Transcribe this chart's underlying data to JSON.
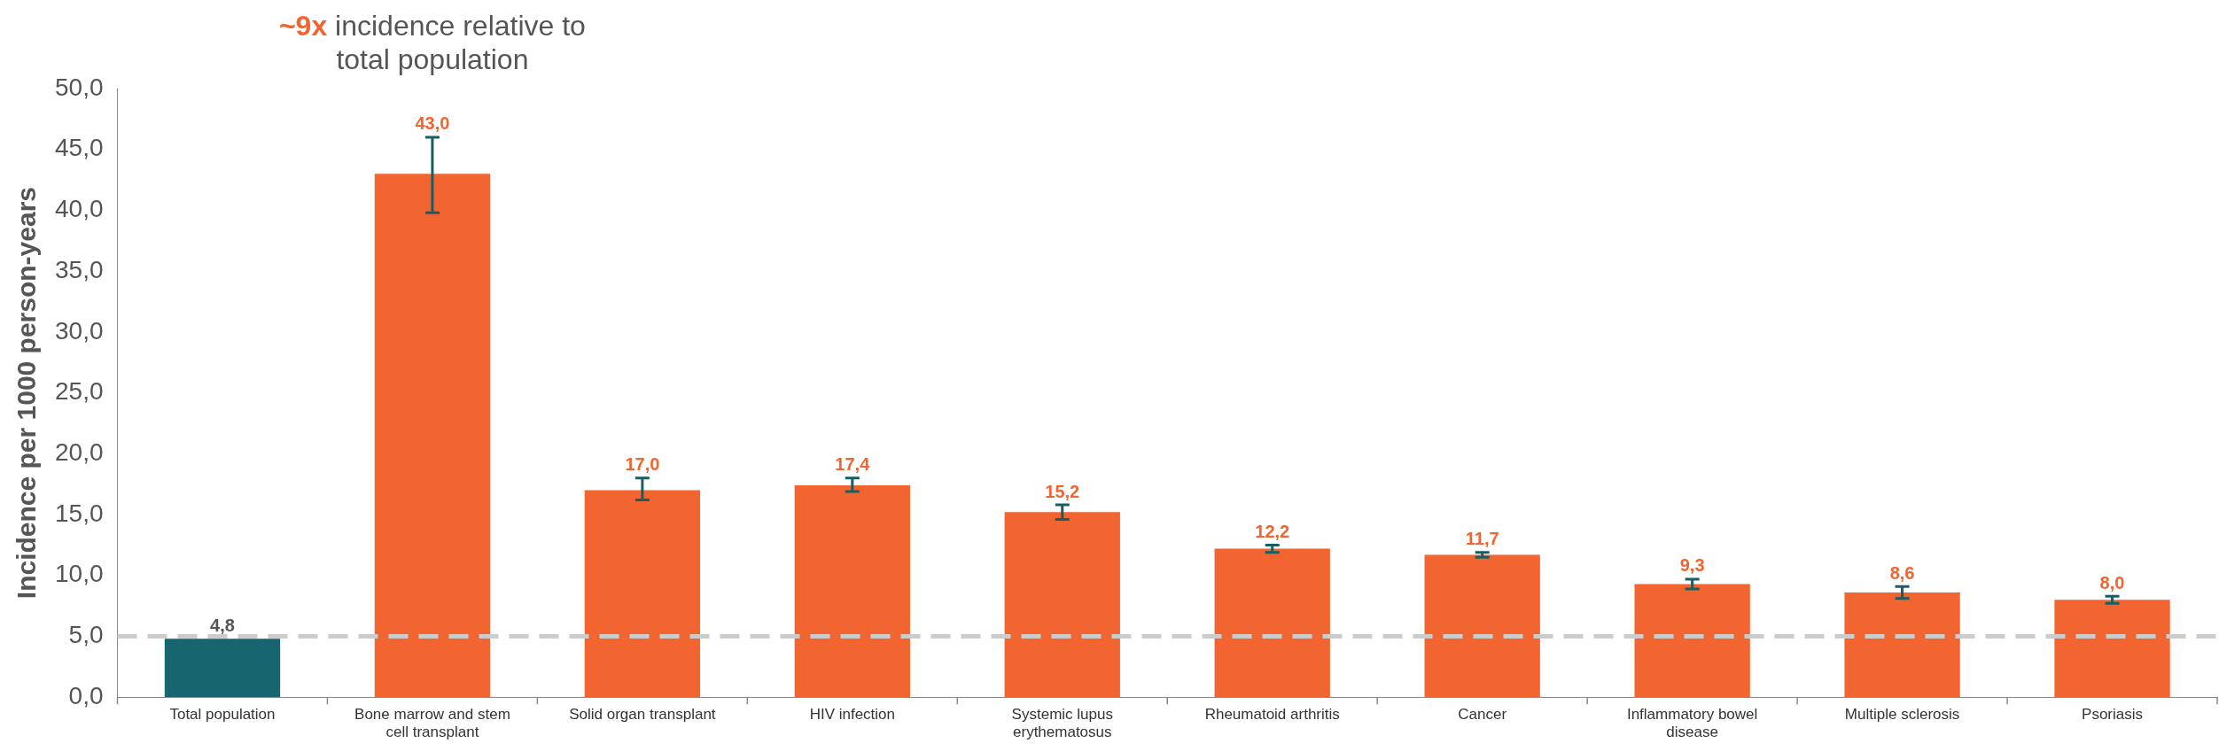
{
  "chart_data": {
    "type": "bar",
    "ylabel": "Incidence per 1000 person-years",
    "categories": [
      "Total population",
      "Bone marrow and stem cell transplant",
      "Solid organ transplant",
      "HIV infection",
      "Systemic lupus erythematosus",
      "Rheumatoid arthritis",
      "Cancer",
      "Inflammatory bowel disease",
      "Multiple sclerosis",
      "Psoriasis"
    ],
    "values": [
      4.8,
      43.0,
      17.0,
      17.4,
      15.2,
      12.2,
      11.7,
      9.3,
      8.6,
      8.0
    ],
    "colors": [
      "#17666f",
      "#f26531",
      "#f26531",
      "#f26531",
      "#f26531",
      "#f26531",
      "#f26531",
      "#f26531",
      "#f26531",
      "#f26531"
    ],
    "errors": [
      null,
      [
        39.8,
        46.0
      ],
      [
        16.2,
        18.0
      ],
      [
        16.9,
        18.0
      ],
      [
        14.6,
        15.8
      ],
      [
        11.9,
        12.5
      ],
      [
        11.5,
        11.9
      ],
      [
        8.9,
        9.7
      ],
      [
        8.1,
        9.1
      ],
      [
        7.7,
        8.3
      ]
    ],
    "value_labels": [
      "4,8",
      "43,0",
      "17,0",
      "17,4",
      "15,2",
      "12,2",
      "11,7",
      "9,3",
      "8,6",
      "8,0"
    ],
    "ylim": [
      0,
      50
    ],
    "yticks": [
      {
        "value": 0,
        "label": "0,0"
      },
      {
        "value": 5,
        "label": "5,0"
      },
      {
        "value": 10,
        "label": "10,0"
      },
      {
        "value": 15,
        "label": "15,0"
      },
      {
        "value": 20,
        "label": "20,0"
      },
      {
        "value": 25,
        "label": "25,0"
      },
      {
        "value": 30,
        "label": "30,0"
      },
      {
        "value": 35,
        "label": "35,0"
      },
      {
        "value": 40,
        "label": "40,0"
      },
      {
        "value": 45,
        "label": "45,0"
      },
      {
        "value": 50,
        "label": "50,0"
      }
    ],
    "ref_lines": [
      {
        "axis": "y",
        "value": 5,
        "color": "#cccccc",
        "line_style": "dashed"
      }
    ],
    "annotations": [
      "~9x incidence relative to total population"
    ],
    "grid": false,
    "legend": false
  }
}
